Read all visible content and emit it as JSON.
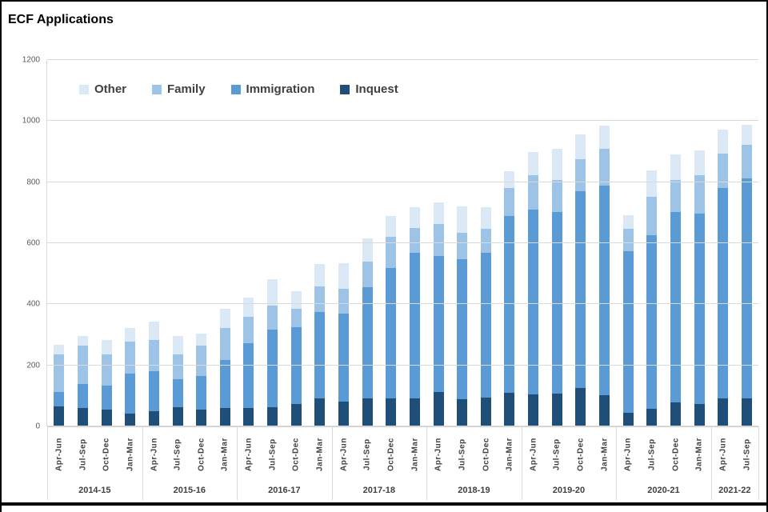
{
  "title": "ECF Applications",
  "chart_data": {
    "type": "bar",
    "stacked": true,
    "title": "ECF Applications",
    "ylabel": "",
    "xlabel": "",
    "ylim": [
      0,
      1200
    ],
    "yticks": [
      0,
      200,
      400,
      600,
      800,
      1000,
      1200
    ],
    "grid": true,
    "legend_position": "top-left-inside",
    "legend": [
      "Other",
      "Family",
      "Immigration",
      "Inquest"
    ],
    "year_groups": [
      {
        "label": "2014-15",
        "quarters": [
          "Apr-Jun",
          "Jul-Sep",
          "Oct-Dec",
          "Jan-Mar"
        ]
      },
      {
        "label": "2015-16",
        "quarters": [
          "Apr-Jun",
          "Jul-Sep",
          "Oct-Dec",
          "Jan-Mar"
        ]
      },
      {
        "label": "2016-17",
        "quarters": [
          "Apr-Jun",
          "Jul-Sep",
          "Oct-Dec",
          "Jan-Mar"
        ]
      },
      {
        "label": "2017-18",
        "quarters": [
          "Apr-Jun",
          "Jul-Sep",
          "Oct-Dec",
          "Jan-Mar"
        ]
      },
      {
        "label": "2018-19",
        "quarters": [
          "Apr-Jun",
          "Jul-Sep",
          "Oct-Dec",
          "Jan-Mar"
        ]
      },
      {
        "label": "2019-20",
        "quarters": [
          "Apr-Jun",
          "Jul-Sep",
          "Oct-Dec",
          "Jan-Mar"
        ]
      },
      {
        "label": "2020-21",
        "quarters": [
          "Apr-Jun",
          "Jul-Sep",
          "Oct-Dec",
          "Jan-Mar"
        ]
      },
      {
        "label": "2021-22",
        "quarters": [
          "Apr-Jun",
          "Jul-Sep"
        ]
      }
    ],
    "series_stack_order_bottom_to_top": [
      "Inquest",
      "Immigration",
      "Family",
      "Other"
    ],
    "series": [
      {
        "name": "Inquest",
        "color": "#1f4e79",
        "values": [
          65,
          60,
          56,
          43,
          51,
          64,
          56,
          60,
          60,
          62,
          74,
          91,
          82,
          93,
          91,
          93,
          114,
          89,
          94,
          110,
          104,
          107,
          125,
          103,
          45,
          57,
          79,
          73,
          92,
          92
        ]
      },
      {
        "name": "Immigration",
        "color": "#5b9bd5",
        "values": [
          48,
          78,
          79,
          131,
          131,
          90,
          109,
          157,
          212,
          256,
          251,
          284,
          287,
          362,
          427,
          476,
          443,
          458,
          474,
          579,
          606,
          596,
          646,
          686,
          529,
          569,
          622,
          623,
          688,
          721
        ]
      },
      {
        "name": "Family",
        "color": "#9dc3e6",
        "values": [
          122,
          127,
          100,
          105,
          102,
          82,
          100,
          106,
          88,
          79,
          59,
          84,
          82,
          85,
          102,
          81,
          107,
          88,
          79,
          91,
          113,
          105,
          105,
          119,
          73,
          126,
          107,
          126,
          114,
          109
        ]
      },
      {
        "name": "Other",
        "color": "#dbe8f5",
        "values": [
          32,
          30,
          48,
          43,
          59,
          59,
          38,
          63,
          62,
          84,
          59,
          74,
          83,
          77,
          70,
          67,
          70,
          86,
          70,
          55,
          75,
          101,
          81,
          78,
          46,
          87,
          84,
          83,
          79,
          66
        ]
      }
    ]
  },
  "style": {
    "gridline_color": "#d9d9d9",
    "axis_text_color": "#595959",
    "label_text_color": "#404040",
    "bottom_rule_color": "#000000"
  }
}
